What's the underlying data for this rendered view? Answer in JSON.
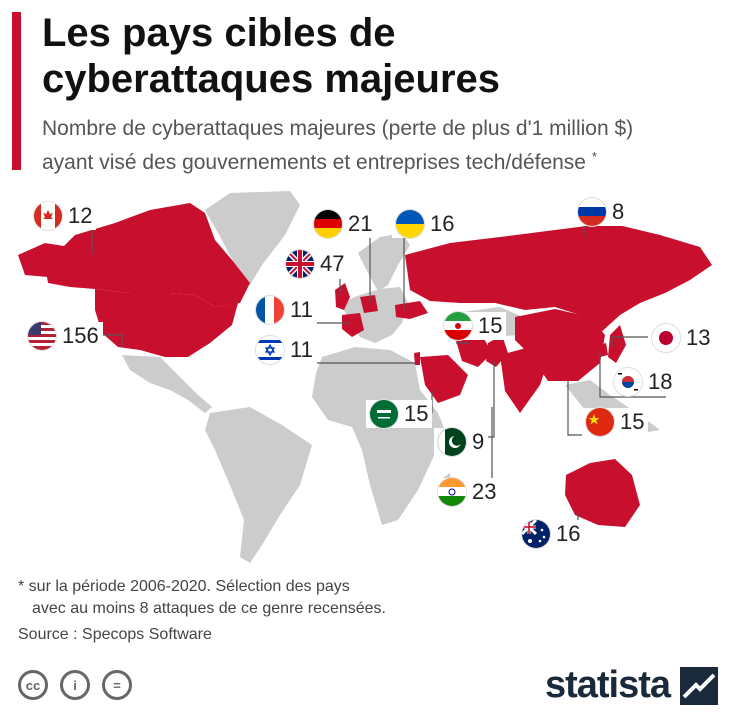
{
  "header": {
    "title_line1": "Les pays cibles de",
    "title_line2": "cyberattaques majeures",
    "subtitle_line1": "Nombre de cyberattaques majeures (perte de plus d'1 million $)",
    "subtitle_line2": "ayant visé des gouvernements et entreprises tech/défense",
    "subtitle_mark": "*"
  },
  "colors": {
    "accent": "#c8102e",
    "target_country": "#c8102e",
    "other_land": "#cccccc",
    "leader_line": "#555555"
  },
  "countries": [
    {
      "id": "canada",
      "flag": "canada-flag",
      "value": "12"
    },
    {
      "id": "usa",
      "flag": "usa-flag",
      "value": "156"
    },
    {
      "id": "germany",
      "flag": "germany-flag",
      "value": "21"
    },
    {
      "id": "ukraine",
      "flag": "ukraine-flag",
      "value": "16"
    },
    {
      "id": "russia",
      "flag": "russia-flag",
      "value": "8"
    },
    {
      "id": "uk",
      "flag": "uk-flag",
      "value": "47"
    },
    {
      "id": "france",
      "flag": "france-flag",
      "value": "11"
    },
    {
      "id": "iran",
      "flag": "iran-flag",
      "value": "15"
    },
    {
      "id": "japan",
      "flag": "japan-flag",
      "value": "13"
    },
    {
      "id": "israel",
      "flag": "israel-flag",
      "value": "11"
    },
    {
      "id": "south-korea",
      "flag": "south-korea-flag",
      "value": "18"
    },
    {
      "id": "saudi-arabia",
      "flag": "saudi-arabia-flag",
      "value": "15"
    },
    {
      "id": "china",
      "flag": "china-flag",
      "value": "15"
    },
    {
      "id": "pakistan",
      "flag": "pakistan-flag",
      "value": "9"
    },
    {
      "id": "india",
      "flag": "india-flag",
      "value": "23"
    },
    {
      "id": "australia",
      "flag": "australia-flag",
      "value": "16"
    }
  ],
  "footnote": {
    "line1": "* sur la période 2006-2020. Sélection des pays",
    "line2": "avec au moins 8 attaques de ce genre recensées."
  },
  "source": "Source : Specops Software",
  "license_icons": [
    "creative-commons-icon",
    "attribution-icon",
    "no-derivatives-icon"
  ],
  "license_glyphs": [
    "cc",
    "i",
    "="
  ],
  "brand": "statista"
}
